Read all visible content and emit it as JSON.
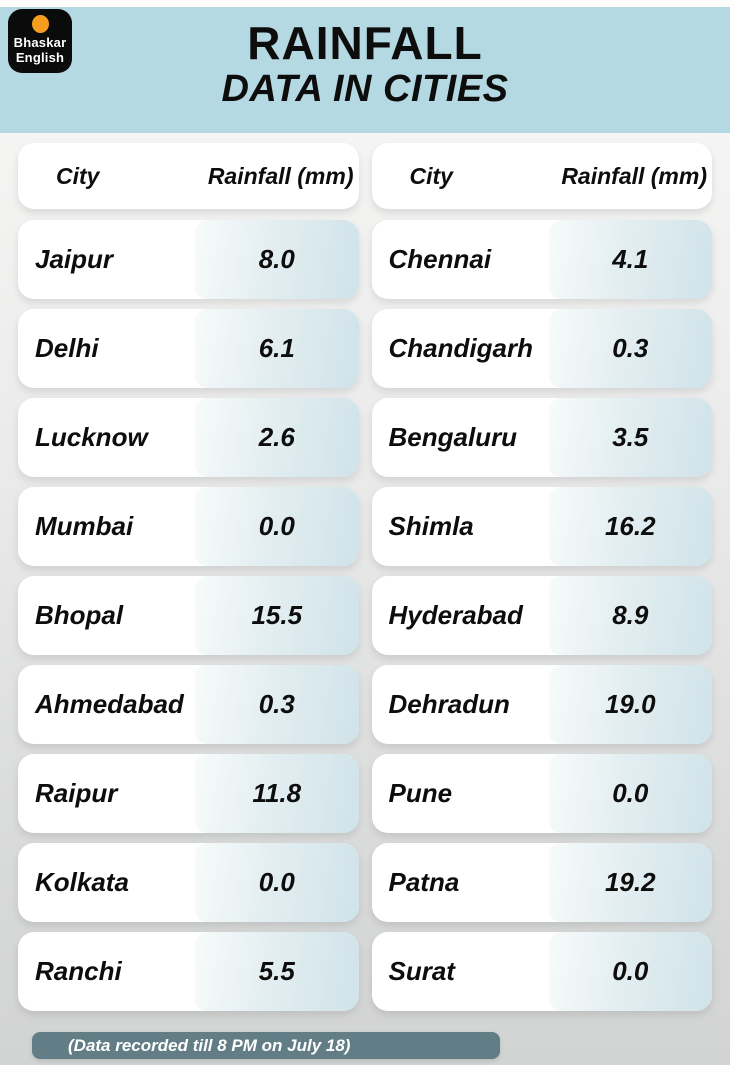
{
  "brand": {
    "line1": "Bhaskar",
    "line2": "English"
  },
  "header": {
    "title": "RAINFALL",
    "subtitle": "DATA IN CITIES"
  },
  "table": {
    "col_city": "City",
    "col_value": "Rainfall (mm)",
    "left": [
      {
        "city": "Jaipur",
        "value": "8.0"
      },
      {
        "city": "Delhi",
        "value": "6.1"
      },
      {
        "city": "Lucknow",
        "value": "2.6"
      },
      {
        "city": "Mumbai",
        "value": "0.0"
      },
      {
        "city": "Bhopal",
        "value": "15.5"
      },
      {
        "city": "Ahmedabad",
        "value": "0.3"
      },
      {
        "city": "Raipur",
        "value": "11.8"
      },
      {
        "city": "Kolkata",
        "value": "0.0"
      },
      {
        "city": "Ranchi",
        "value": "5.5"
      }
    ],
    "right": [
      {
        "city": "Chennai",
        "value": "4.1"
      },
      {
        "city": "Chandigarh",
        "value": "0.3"
      },
      {
        "city": "Bengaluru",
        "value": "3.5"
      },
      {
        "city": "Shimla",
        "value": "16.2"
      },
      {
        "city": "Hyderabad",
        "value": "8.9"
      },
      {
        "city": "Dehradun",
        "value": "19.0"
      },
      {
        "city": "Pune",
        "value": "0.0"
      },
      {
        "city": "Patna",
        "value": "19.2"
      },
      {
        "city": "Surat",
        "value": "0.0"
      }
    ]
  },
  "footer": {
    "note": "(Data recorded till 8 PM on July 18)"
  },
  "colors": {
    "header_blue": "#b5d9e2",
    "panel_blue": "#cfe3e9",
    "badge": "#627d85",
    "brand_orange": "#f59d1e"
  },
  "chart_data": {
    "type": "table",
    "title": "RAINFALL DATA IN CITIES",
    "columns": [
      "City",
      "Rainfall (mm)"
    ],
    "rows": [
      [
        "Jaipur",
        8.0
      ],
      [
        "Delhi",
        6.1
      ],
      [
        "Lucknow",
        2.6
      ],
      [
        "Mumbai",
        0.0
      ],
      [
        "Bhopal",
        15.5
      ],
      [
        "Ahmedabad",
        0.3
      ],
      [
        "Raipur",
        11.8
      ],
      [
        "Kolkata",
        0.0
      ],
      [
        "Ranchi",
        5.5
      ],
      [
        "Chennai",
        4.1
      ],
      [
        "Chandigarh",
        0.3
      ],
      [
        "Bengaluru",
        3.5
      ],
      [
        "Shimla",
        16.2
      ],
      [
        "Hyderabad",
        8.9
      ],
      [
        "Dehradun",
        19.0
      ],
      [
        "Pune",
        0.0
      ],
      [
        "Patna",
        19.2
      ],
      [
        "Surat",
        0.0
      ]
    ],
    "footnote": "(Data recorded till 8 PM on July 18)"
  }
}
